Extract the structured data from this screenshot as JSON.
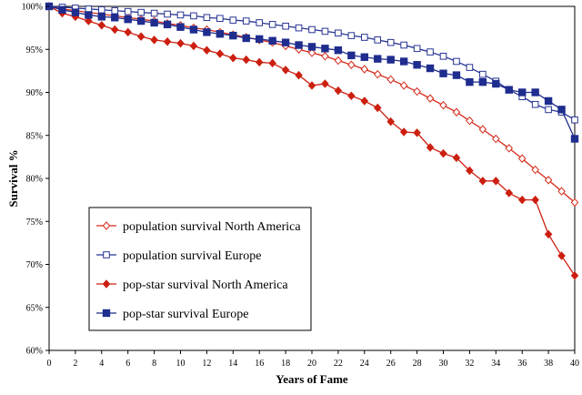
{
  "chart_data": {
    "type": "line",
    "xlabel": "Years of Fame",
    "ylabel": "Survival %",
    "xlim": [
      0,
      40
    ],
    "ylim": [
      60,
      100
    ],
    "x_ticks": [
      0,
      2,
      4,
      6,
      8,
      10,
      12,
      14,
      16,
      18,
      20,
      22,
      24,
      26,
      28,
      30,
      32,
      34,
      36,
      38,
      40
    ],
    "y_ticks": [
      60,
      65,
      70,
      75,
      80,
      85,
      90,
      95,
      100
    ],
    "y_tick_labels": [
      "60%",
      "65%",
      "70%",
      "75%",
      "80%",
      "85%",
      "90%",
      "95%",
      "100%"
    ],
    "grid": false,
    "legend_position": "bottom-left",
    "series": [
      {
        "name": "population survival North America",
        "color": "#d42a1a",
        "marker": "diamond-open",
        "x": [
          0,
          1,
          2,
          3,
          4,
          5,
          6,
          7,
          8,
          9,
          10,
          11,
          12,
          13,
          14,
          15,
          16,
          17,
          18,
          19,
          20,
          21,
          22,
          23,
          24,
          25,
          26,
          27,
          28,
          29,
          30,
          31,
          32,
          33,
          34,
          35,
          36,
          37,
          38,
          39,
          40
        ],
        "values": [
          100,
          99.7,
          99.5,
          99.3,
          99.1,
          98.9,
          98.7,
          98.5,
          98.3,
          98.0,
          97.8,
          97.5,
          97.3,
          97.0,
          96.7,
          96.4,
          96.1,
          95.8,
          95.4,
          95.0,
          94.6,
          94.2,
          93.7,
          93.2,
          92.7,
          92.1,
          91.5,
          90.8,
          90.1,
          89.3,
          88.5,
          87.7,
          86.7,
          85.7,
          84.6,
          83.5,
          82.3,
          81.0,
          79.8,
          78.5,
          77.2
        ]
      },
      {
        "name": "population survival Europe",
        "color": "#283593",
        "marker": "square-open",
        "x": [
          0,
          1,
          2,
          3,
          4,
          5,
          6,
          7,
          8,
          9,
          10,
          11,
          12,
          13,
          14,
          15,
          16,
          17,
          18,
          19,
          20,
          21,
          22,
          23,
          24,
          25,
          26,
          27,
          28,
          29,
          30,
          31,
          32,
          33,
          34,
          35,
          36,
          37,
          38,
          39,
          40
        ],
        "values": [
          100,
          99.9,
          99.8,
          99.7,
          99.6,
          99.5,
          99.4,
          99.3,
          99.2,
          99.1,
          99.0,
          98.9,
          98.7,
          98.6,
          98.4,
          98.3,
          98.1,
          97.9,
          97.7,
          97.5,
          97.3,
          97.1,
          96.9,
          96.6,
          96.4,
          96.1,
          95.8,
          95.5,
          95.1,
          94.7,
          94.2,
          93.6,
          92.9,
          92.1,
          91.3,
          90.3,
          89.5,
          88.6,
          88.0,
          87.7,
          86.8
        ]
      },
      {
        "name": "pop-star survival North America",
        "color": "#cc1f10",
        "marker": "diamond-filled",
        "x": [
          0,
          1,
          2,
          3,
          4,
          5,
          6,
          7,
          8,
          9,
          10,
          11,
          12,
          13,
          14,
          15,
          16,
          17,
          18,
          19,
          20,
          21,
          22,
          23,
          24,
          25,
          26,
          27,
          28,
          29,
          30,
          31,
          32,
          33,
          34,
          35,
          36,
          37,
          38,
          39,
          40
        ],
        "values": [
          100,
          99.2,
          98.8,
          98.3,
          97.8,
          97.3,
          97.0,
          96.5,
          96.1,
          95.9,
          95.7,
          95.4,
          94.9,
          94.5,
          94.0,
          93.8,
          93.5,
          93.4,
          92.6,
          92.0,
          90.8,
          91.0,
          90.2,
          89.6,
          89.0,
          88.2,
          86.6,
          85.4,
          85.3,
          83.6,
          82.9,
          82.4,
          80.9,
          79.7,
          79.7,
          78.3,
          77.5,
          77.5,
          73.5,
          71.0,
          68.7
        ]
      },
      {
        "name": "pop-star survival Europe",
        "color": "#1f2d8e",
        "marker": "square-filled",
        "x": [
          0,
          1,
          2,
          3,
          4,
          5,
          6,
          7,
          8,
          9,
          10,
          11,
          12,
          13,
          14,
          15,
          16,
          17,
          18,
          19,
          20,
          21,
          22,
          23,
          24,
          25,
          26,
          27,
          28,
          29,
          30,
          31,
          32,
          33,
          34,
          35,
          36,
          37,
          38,
          39,
          40
        ],
        "values": [
          100,
          99.6,
          99.3,
          99.0,
          98.8,
          98.7,
          98.5,
          98.3,
          98.1,
          97.9,
          97.6,
          97.3,
          97.0,
          96.8,
          96.6,
          96.3,
          96.2,
          96.0,
          95.8,
          95.5,
          95.3,
          95.1,
          94.9,
          94.3,
          94.1,
          93.9,
          93.8,
          93.6,
          93.2,
          92.8,
          92.2,
          92.0,
          91.2,
          91.2,
          91.0,
          90.3,
          90.0,
          90.0,
          89.0,
          88.0,
          84.6
        ]
      }
    ]
  }
}
